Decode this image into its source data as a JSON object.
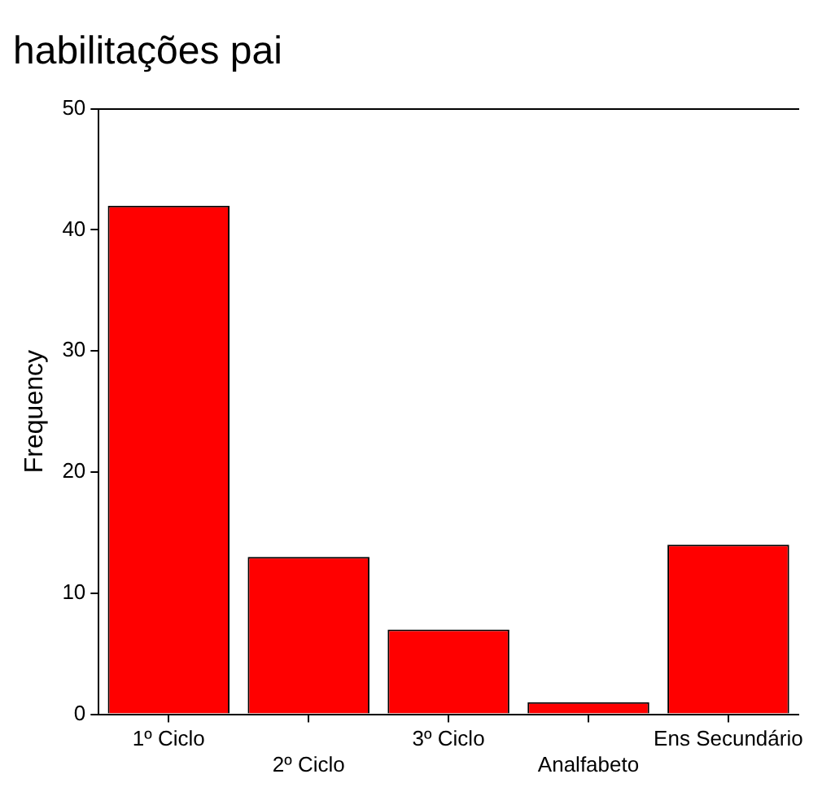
{
  "chart_data": {
    "type": "bar",
    "title": "habilitações pai",
    "ylabel": "Frequency",
    "categories": [
      "1º Ciclo",
      "2º Ciclo",
      "3º Ciclo",
      "Analfabeto",
      "Ens Secundário"
    ],
    "values": [
      42,
      13,
      7,
      1,
      14
    ],
    "color": "#ff0000",
    "ylim": [
      0,
      50
    ],
    "yticks": [
      0,
      10,
      20,
      30,
      40,
      50
    ],
    "grid": false,
    "legend": false
  }
}
